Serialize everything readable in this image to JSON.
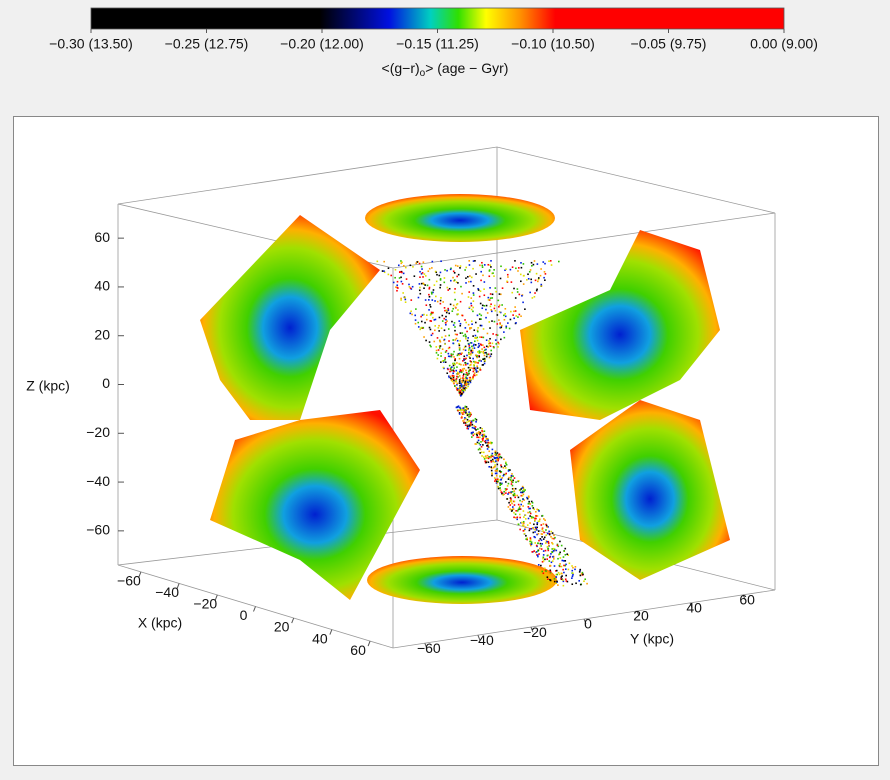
{
  "chart_data": {
    "type": "scatter3d",
    "colorbar": {
      "clim": [
        -0.3,
        0
      ],
      "ticks": [
        {
          "value": -0.3,
          "label": "−0.30 (13.50)"
        },
        {
          "value": -0.25,
          "label": "−0.25 (12.75)"
        },
        {
          "value": -0.2,
          "label": "−0.20 (12.00)"
        },
        {
          "value": -0.15,
          "label": "−0.15 (11.25)"
        },
        {
          "value": -0.1,
          "label": "−0.10 (10.50)"
        },
        {
          "value": -0.05,
          "label": "−0.05 (9.75)"
        },
        {
          "value": 0,
          "label": "0.00 (9.00)"
        }
      ],
      "label_start": "<(g−r)",
      "label_sub": "o",
      "label_end": "> (age − Gyr)"
    },
    "xlabel": "X (kpc)",
    "ylabel": "Y (kpc)",
    "zlabel": "Z (kpc)",
    "xlim": [
      -72,
      72
    ],
    "ylim": [
      -72,
      72
    ],
    "zlim": [
      -74,
      74
    ],
    "xticks": [
      {
        "value": -60,
        "label": "−60"
      },
      {
        "value": -40,
        "label": "−40"
      },
      {
        "value": -20,
        "label": "−20"
      },
      0,
      20,
      40,
      60
    ],
    "yticks": [
      {
        "value": -60,
        "label": "−60"
      },
      {
        "value": -40,
        "label": "−40"
      },
      {
        "value": -20,
        "label": "−20"
      },
      0,
      20,
      40,
      60
    ],
    "zticks": [
      60,
      40,
      20,
      0,
      {
        "value": -20,
        "label": "−20"
      },
      {
        "value": -40,
        "label": "−40"
      },
      {
        "value": -60,
        "label": "−60"
      }
    ]
  }
}
